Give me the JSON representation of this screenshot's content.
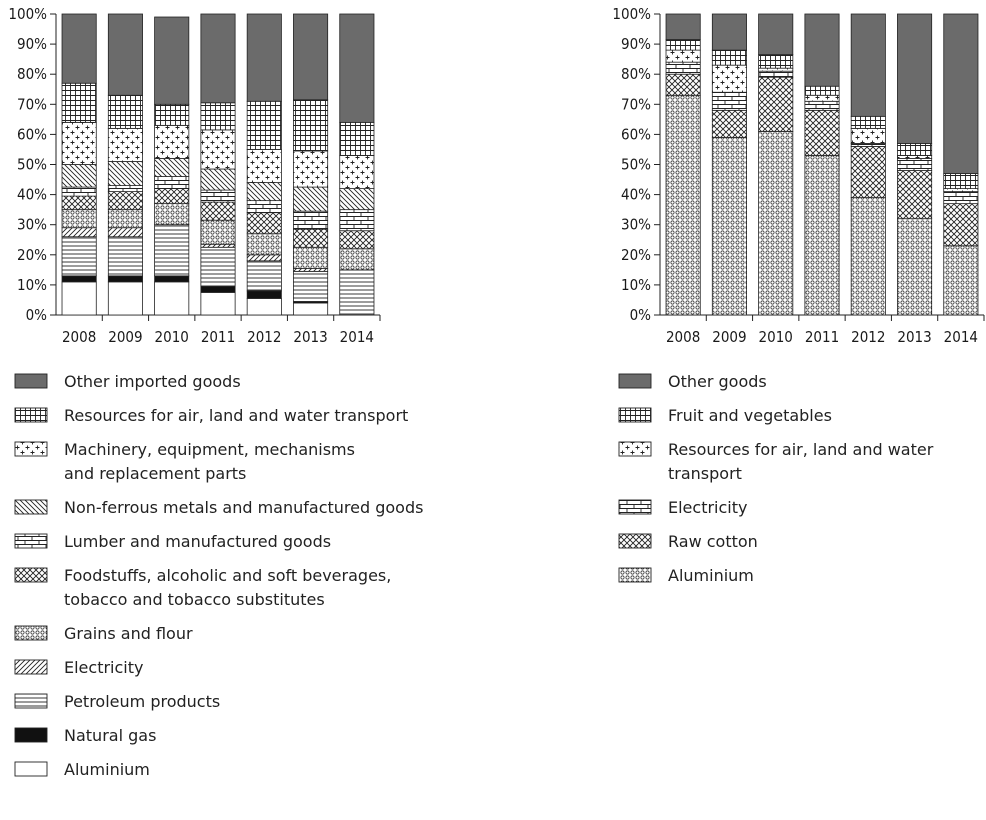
{
  "chart_data": [
    {
      "type": "bar",
      "stacked": true,
      "categories": [
        "2008",
        "2009",
        "2010",
        "2011",
        "2012",
        "2013",
        "2014"
      ],
      "ylim": [
        0,
        100
      ],
      "yticks": [
        "0%",
        "10%",
        "20%",
        "30%",
        "40%",
        "50%",
        "60%",
        "70%",
        "80%",
        "90%",
        "100%"
      ],
      "grid": false,
      "series": [
        {
          "name": "Aluminium",
          "pattern": "empty",
          "values": [
            11,
            11,
            11,
            7.5,
            5.5,
            4,
            0
          ]
        },
        {
          "name": "Natural gas",
          "pattern": "solid",
          "values": [
            2,
            2,
            2,
            2,
            2.5,
            0.5,
            0
          ]
        },
        {
          "name": "Petroleum products",
          "pattern": "hlines",
          "values": [
            13,
            13,
            17,
            13,
            10,
            10,
            15
          ]
        },
        {
          "name": "Electricity",
          "pattern": "diag-fwd",
          "values": [
            3,
            3,
            0,
            1,
            2,
            1,
            0
          ]
        },
        {
          "name": "Grains and flour",
          "pattern": "circles",
          "values": [
            6,
            6,
            7,
            8,
            7,
            7,
            7
          ]
        },
        {
          "name": "Foodstuffs, alcoholic and soft beverages, tobacco and tobacco substitutes",
          "pattern": "crosshatch",
          "values": [
            4.5,
            6,
            5,
            6,
            7,
            6,
            6
          ]
        },
        {
          "name": "Lumber and manufactured goods",
          "pattern": "bricks",
          "values": [
            3,
            2,
            4,
            4,
            4,
            6,
            7
          ]
        },
        {
          "name": "Non-ferrous metals and manufactured goods",
          "pattern": "diag-back",
          "values": [
            7.5,
            8,
            6,
            7,
            6,
            8,
            7
          ]
        },
        {
          "name": "Machinery, equipment, mechanisms and replacement parts",
          "pattern": "plus",
          "values": [
            14,
            11,
            11,
            13,
            11,
            12,
            11
          ]
        },
        {
          "name": "Resources for air, land and water transport",
          "pattern": "grid",
          "values": [
            13,
            11,
            7,
            9,
            16,
            17,
            11
          ]
        },
        {
          "name": "Other imported goods",
          "pattern": "dark",
          "values": [
            23,
            27,
            29,
            29.5,
            29,
            28.5,
            36
          ]
        }
      ]
    },
    {
      "type": "bar",
      "stacked": true,
      "categories": [
        "2008",
        "2009",
        "2010",
        "2011",
        "2012",
        "2013",
        "2014"
      ],
      "ylim": [
        0,
        100
      ],
      "yticks": [
        "0%",
        "10%",
        "20%",
        "30%",
        "40%",
        "50%",
        "60%",
        "70%",
        "80%",
        "90%",
        "100%"
      ],
      "grid": false,
      "series": [
        {
          "name": "Aluminium",
          "pattern": "circles",
          "values": [
            73,
            59,
            61,
            53,
            39,
            32,
            23
          ]
        },
        {
          "name": "Raw cotton",
          "pattern": "crosshatch",
          "values": [
            7,
            9,
            18,
            15,
            17,
            16,
            14
          ]
        },
        {
          "name": "Electricity",
          "pattern": "bricks",
          "values": [
            4,
            6,
            2,
            3,
            1,
            4,
            4
          ]
        },
        {
          "name": "Resources for air, land and water transport",
          "pattern": "plus",
          "values": [
            4,
            9,
            1,
            2,
            5,
            1,
            1
          ]
        },
        {
          "name": "Fruit and vegetables",
          "pattern": "grid",
          "values": [
            3.5,
            5,
            4.5,
            3,
            4,
            4,
            5
          ]
        },
        {
          "name": "Other goods",
          "pattern": "dark",
          "values": [
            8.5,
            12,
            13.5,
            24,
            34,
            43,
            53
          ]
        }
      ]
    }
  ],
  "legends": {
    "left": [
      {
        "lines": [
          "Other imported goods"
        ],
        "pattern": "dark"
      },
      {
        "lines": [
          "Resources for air, land and water transport"
        ],
        "pattern": "grid"
      },
      {
        "lines": [
          "Machinery, equipment, mechanisms",
          "and replacement parts"
        ],
        "pattern": "plus"
      },
      {
        "lines": [
          "Non-ferrous metals and manufactured goods"
        ],
        "pattern": "diag-back"
      },
      {
        "lines": [
          "Lumber and manufactured goods"
        ],
        "pattern": "bricks"
      },
      {
        "lines": [
          "Foodstuffs, alcoholic and soft beverages,",
          "tobacco and tobacco substitutes"
        ],
        "pattern": "crosshatch"
      },
      {
        "lines": [
          "Grains and flour"
        ],
        "pattern": "circles"
      },
      {
        "lines": [
          "Electricity"
        ],
        "pattern": "diag-fwd"
      },
      {
        "lines": [
          "Petroleum products"
        ],
        "pattern": "hlines"
      },
      {
        "lines": [
          "Natural gas"
        ],
        "pattern": "solid"
      },
      {
        "lines": [
          "Aluminium"
        ],
        "pattern": "empty"
      }
    ],
    "right": [
      {
        "lines": [
          "Other goods"
        ],
        "pattern": "dark"
      },
      {
        "lines": [
          "Fruit and vegetables"
        ],
        "pattern": "grid"
      },
      {
        "lines": [
          "Resources for air, land and water",
          "transport"
        ],
        "pattern": "plus"
      },
      {
        "lines": [
          "Electricity"
        ],
        "pattern": "bricks"
      },
      {
        "lines": [
          "Raw cotton"
        ],
        "pattern": "crosshatch"
      },
      {
        "lines": [
          "Aluminium"
        ],
        "pattern": "circles"
      }
    ]
  },
  "colors": {
    "dark": "#6b6b6b",
    "ink": "#222222",
    "solid": "#111111"
  }
}
